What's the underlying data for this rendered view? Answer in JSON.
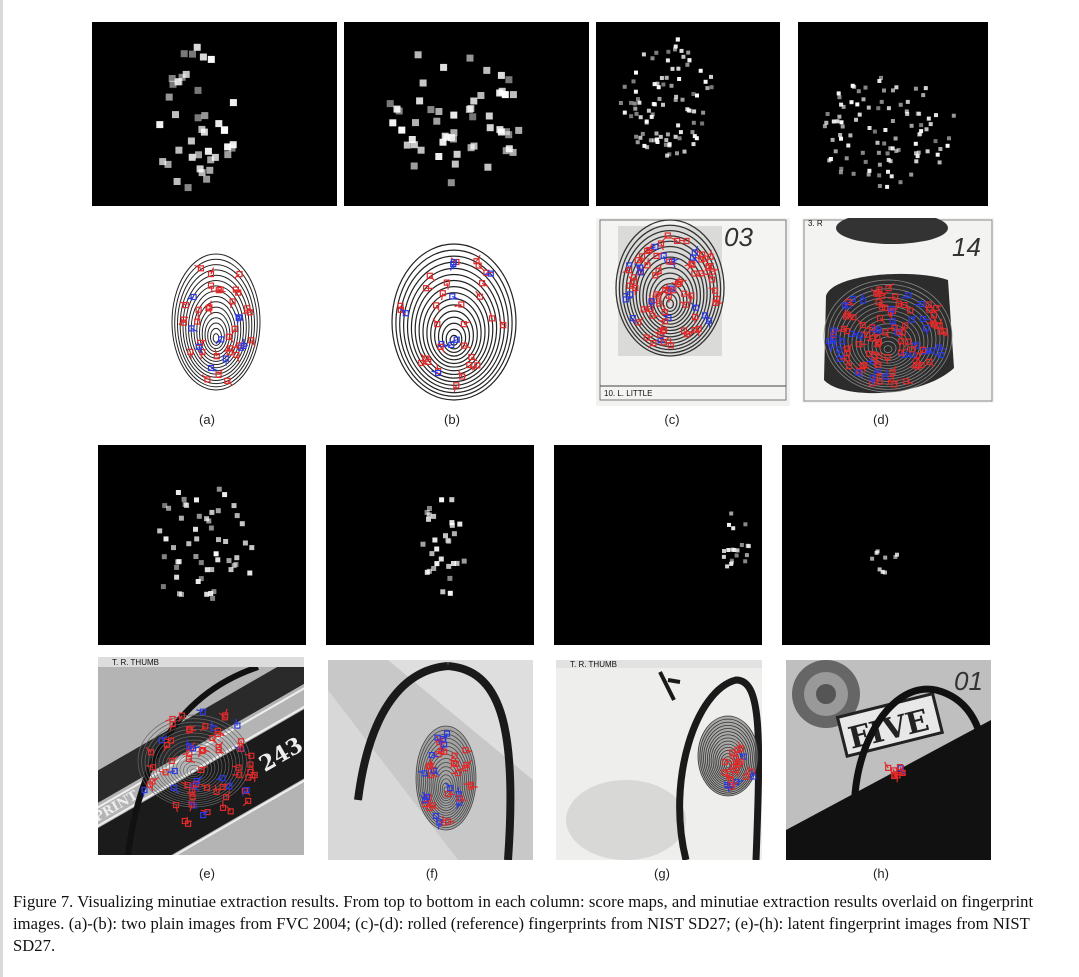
{
  "figure": {
    "labels": {
      "a": "(a)",
      "b": "(b)",
      "c": "(c)",
      "d": "(d)",
      "e": "(e)",
      "f": "(f)",
      "g": "(g)",
      "h": "(h)"
    },
    "card_c_name": "10. L. LITTLE",
    "card_c_number": "03",
    "card_d_number": "14",
    "card_d_top": "3. R",
    "card_top_efg": "T. R. THUMB",
    "card_e_text": "PRINT",
    "card_e_number": "243",
    "bill_text": "FIVE",
    "card_h_number": "01",
    "caption": "Figure 7. Visualizing minutiae extraction results. From top to bottom in each column: score maps, and minutiae extraction results overlaid on fingerprint images. (a)-(b): two plain images from FVC 2004; (c)-(d): rolled (reference) fingerprints from NIST SD27; (e)-(h): latent fingerprint images from NIST SD27."
  },
  "colors": {
    "minutia_red": "#e02a2a",
    "minutia_blue": "#2a3ae0",
    "score_dot": "#ffffff",
    "score_bg": "#000000"
  }
}
